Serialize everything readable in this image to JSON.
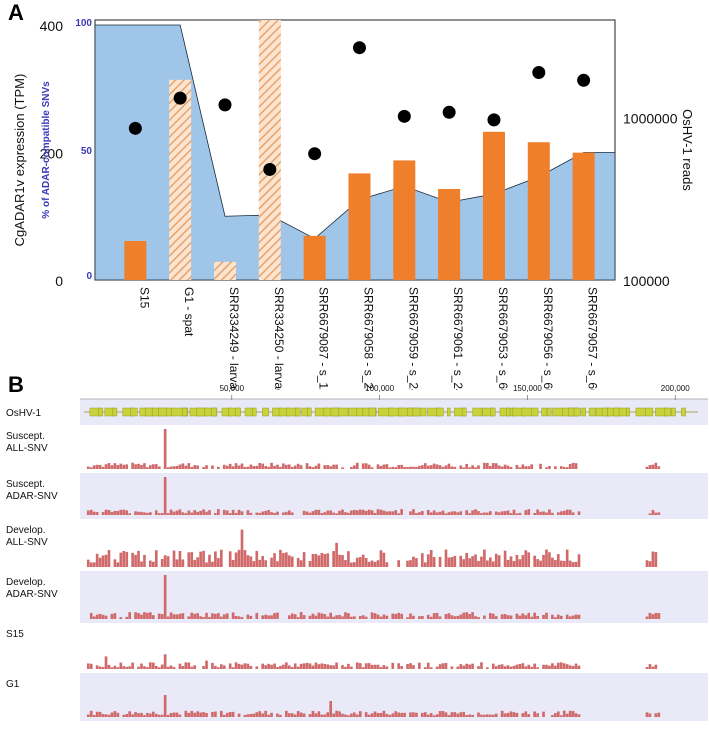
{
  "panelA": {
    "letter": "A",
    "chart_data": {
      "type": "bar",
      "categories": [
        "S15",
        "G1 - spat",
        "SRR334249 - larvae",
        "SRR334250 - larvae",
        "SRR6679087 - s_12",
        "SRR6679058 - s_24",
        "SRR6679059 - s_24",
        "SRR6679061 - s_24",
        "SRR6679053 - s_60",
        "SRR6679056 - s_60",
        "SRR6679057 - s_60"
      ],
      "ylabel_left": "CgADAR1v expression (TPM)",
      "ylim_left": [
        0,
        400
      ],
      "yticks_left": [
        "0",
        "200",
        "400"
      ],
      "ylabel_inner": "% of ADAR-compatible SNVs",
      "ylim_inner": [
        0,
        100
      ],
      "yticks_inner": [
        "0",
        "50",
        "100"
      ],
      "ylabel_right": "OsHV-1 reads",
      "yticks_right": [
        "100000",
        "1000000"
      ],
      "area_tpm": [
        400,
        400,
        100,
        102,
        65,
        126,
        147,
        122,
        135,
        162,
        200
      ],
      "bars_pct": [
        15,
        77,
        7,
        100,
        17,
        41,
        46,
        35,
        57,
        53,
        49
      ],
      "bars_hatched": [
        false,
        true,
        true,
        true,
        false,
        false,
        false,
        false,
        false,
        false,
        false
      ],
      "reads": [
        860000,
        1320000,
        1200000,
        480000,
        600000,
        2700000,
        1020000,
        1080000,
        970000,
        1900000,
        1700000
      ],
      "colors": {
        "area": "#9fc5e8",
        "bar": "#f07f2c",
        "hatch": "#e8a36a",
        "dot": "#000000",
        "inner_axis": "#3a3ab8"
      }
    }
  },
  "panelB": {
    "letter": "B",
    "chart_data": {
      "type": "bar",
      "xticks": [
        "50,000",
        "100,000",
        "150,000",
        "200,000"
      ],
      "genome_track_label": "OsHV-1",
      "tracks": [
        {
          "label1": "Suscept.",
          "label2": "ALL-SNV",
          "peaks": {
            "14": 1.0,
            "107": 0.5,
            "108": 0.4,
            "193": 0.25
          }
        },
        {
          "label1": "Suscept.",
          "label2": "ADAR-SNV",
          "peaks": {
            "14": 1.0,
            "106": 0.55,
            "107": 0.4
          }
        },
        {
          "label1": "Develop.",
          "label2": "ALL-SNV",
          "peaks": {
            "28": 0.85,
            "106": 1.0,
            "45": 0.55,
            "193": 0.25
          }
        },
        {
          "label1": "Develop.",
          "label2": "ADAR-SNV",
          "peaks": {
            "14": 1.0,
            "106": 0.95,
            "107": 0.6
          }
        },
        {
          "label1": "S15",
          "label2": "",
          "peaks": {
            "107": 1.0,
            "14": 0.35,
            "3": 0.3,
            "22": 0.2
          }
        },
        {
          "label1": "G1",
          "label2": "",
          "peaks": {
            "107": 1.0,
            "14": 0.55,
            "44": 0.4,
            "193": 0.2
          }
        }
      ],
      "colors": {
        "bar": "#d06a6a",
        "genes": "#c8d23a",
        "band_alt": "#e9e9f7"
      }
    }
  }
}
